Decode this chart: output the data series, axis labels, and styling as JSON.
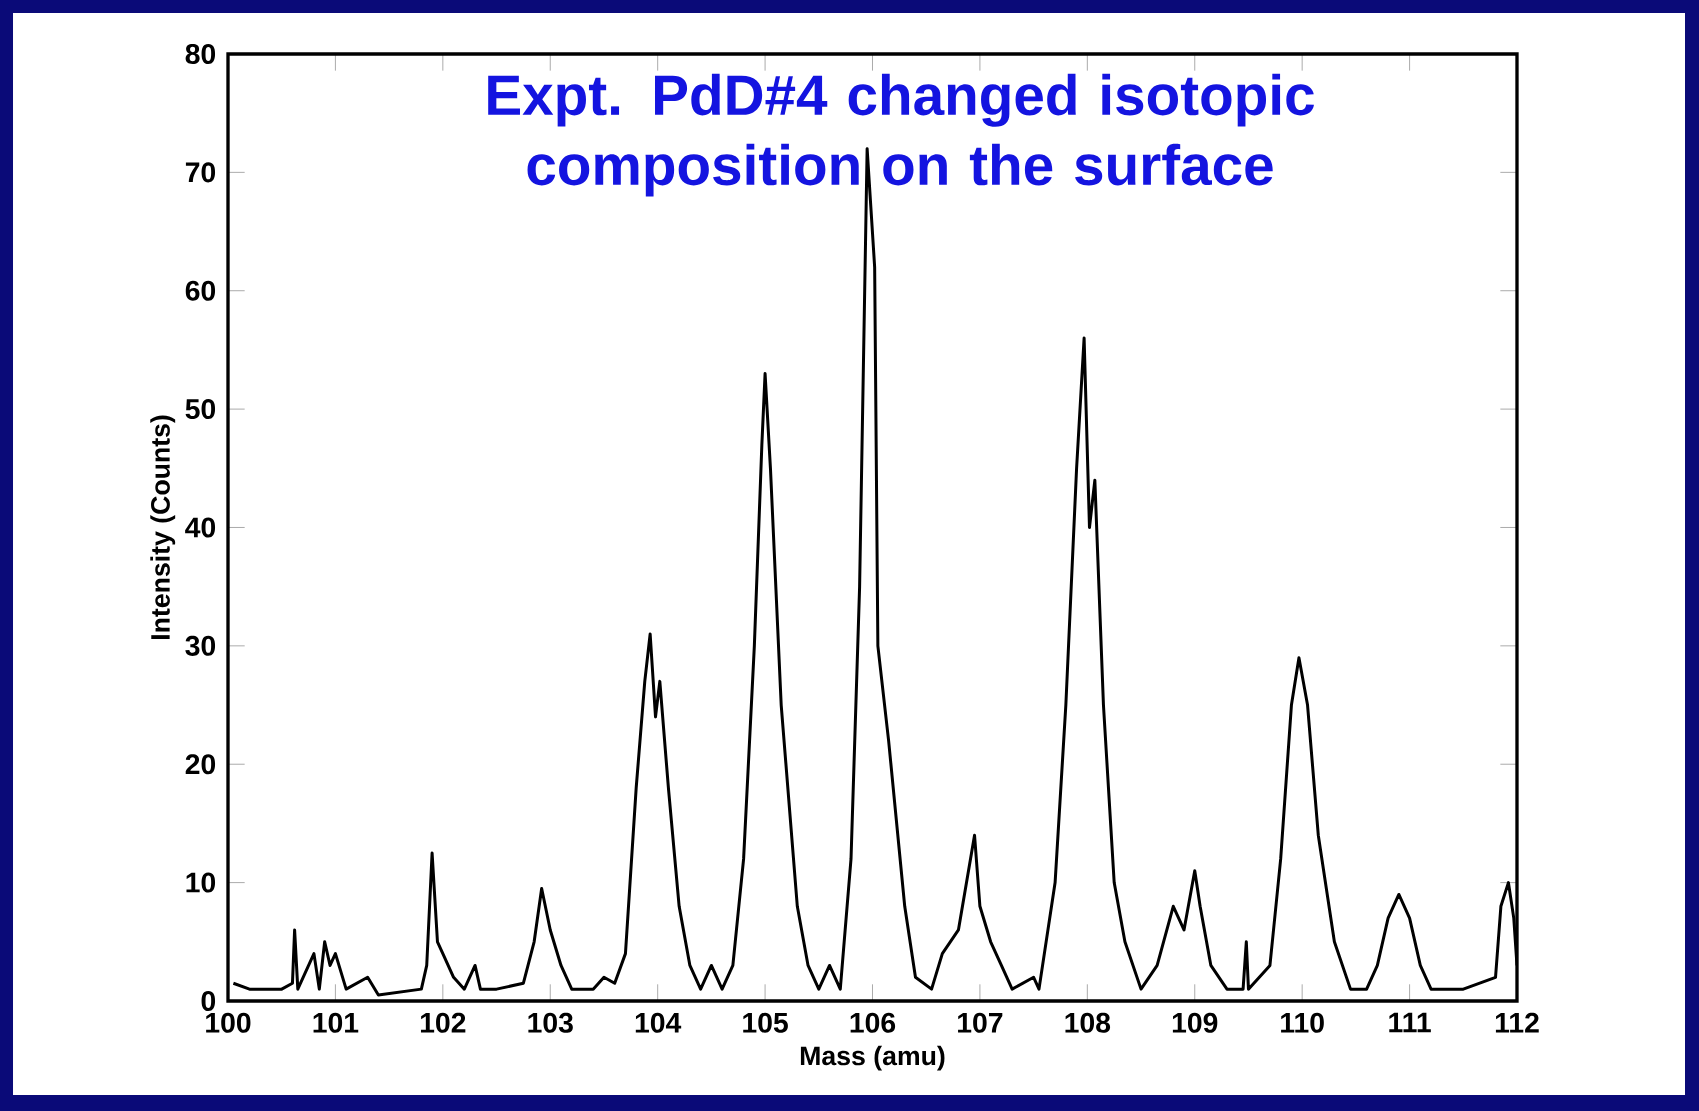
{
  "chart_data": {
    "type": "line",
    "title": "Expt. PdD#4 changed isotopic composition on the surface",
    "xlabel": "Mass (amu)",
    "ylabel": "Intensity (Counts)",
    "color": "#000000",
    "marker": "none",
    "line_style": "solid",
    "xlim": [
      100,
      112
    ],
    "ylim": [
      0,
      80
    ],
    "xticks": [
      100,
      101,
      102,
      103,
      104,
      105,
      106,
      107,
      108,
      109,
      110,
      111,
      112
    ],
    "yticks": [
      0,
      10,
      20,
      30,
      40,
      50,
      60,
      70,
      80
    ],
    "x": [
      100.05,
      100.2,
      100.5,
      100.6,
      100.62,
      100.65,
      100.8,
      100.85,
      100.9,
      100.95,
      101.0,
      101.1,
      101.3,
      101.4,
      101.8,
      101.85,
      101.9,
      101.95,
      102.0,
      102.1,
      102.2,
      102.3,
      102.35,
      102.5,
      102.75,
      102.85,
      102.92,
      103.0,
      103.1,
      103.2,
      103.4,
      103.5,
      103.6,
      103.7,
      103.8,
      103.88,
      103.93,
      103.98,
      104.02,
      104.1,
      104.2,
      104.3,
      104.4,
      104.5,
      104.6,
      104.7,
      104.8,
      104.9,
      104.97,
      105.0,
      105.05,
      105.15,
      105.3,
      105.4,
      105.5,
      105.6,
      105.7,
      105.8,
      105.88,
      105.95,
      106.02,
      106.05,
      106.15,
      106.3,
      106.4,
      106.55,
      106.65,
      106.8,
      106.95,
      107.0,
      107.1,
      107.2,
      107.3,
      107.5,
      107.55,
      107.7,
      107.8,
      107.9,
      107.97,
      108.02,
      108.07,
      108.15,
      108.25,
      108.35,
      108.5,
      108.65,
      108.8,
      108.9,
      109.0,
      109.05,
      109.15,
      109.3,
      109.45,
      109.48,
      109.5,
      109.7,
      109.8,
      109.9,
      109.97,
      110.05,
      110.15,
      110.3,
      110.45,
      110.6,
      110.7,
      110.8,
      110.9,
      111.0,
      111.1,
      111.2,
      111.5,
      111.8,
      111.85,
      111.92,
      111.97,
      112.0
    ],
    "values": [
      1.5,
      1,
      1,
      1.5,
      6,
      1,
      4,
      1,
      5,
      3,
      4,
      1,
      2,
      0.5,
      1,
      3,
      12.5,
      5,
      4,
      2,
      1,
      3,
      1,
      1,
      1.5,
      5,
      9.5,
      6,
      3,
      1,
      1,
      2,
      1.5,
      4,
      18,
      27,
      31,
      24,
      27,
      18,
      8,
      3,
      1,
      3,
      1,
      3,
      12,
      30,
      47,
      53,
      45,
      25,
      8,
      3,
      1,
      3,
      1,
      12,
      35,
      72,
      62,
      30,
      22,
      8,
      2,
      1,
      4,
      6,
      14,
      8,
      5,
      3,
      1,
      2,
      1,
      10,
      25,
      45,
      56,
      40,
      44,
      25,
      10,
      5,
      1,
      3,
      8,
      6,
      11,
      8,
      3,
      1,
      1,
      5,
      1,
      3,
      12,
      25,
      29,
      25,
      14,
      5,
      1,
      1,
      3,
      7,
      9,
      7,
      3,
      1,
      1,
      2,
      8,
      10,
      7,
      3
    ]
  }
}
